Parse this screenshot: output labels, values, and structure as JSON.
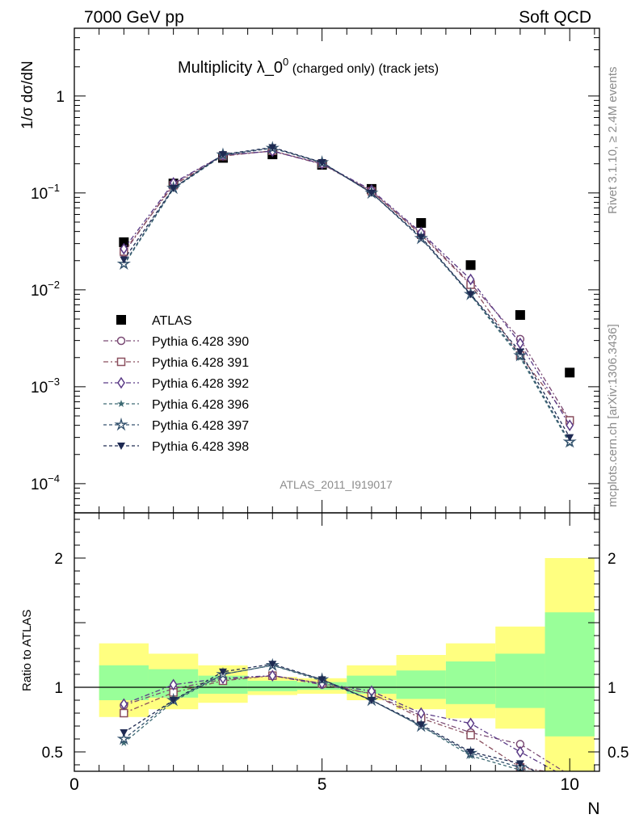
{
  "header": {
    "left": "7000 GeV pp",
    "right": "Soft QCD",
    "side_top": "Rivet 3.1.10, ≥ 2.4M events",
    "side_bottom": "mcplots.cern.ch [arXiv:1306.3436]"
  },
  "chart_data": {
    "type": "scatter",
    "title": "Multiplicity λ_0⁰ (charged only) (track jets)",
    "title_main": "Multiplicity λ_0",
    "title_sup": "0",
    "title_tail": " (charged only) (track jets)",
    "analysis_label": "ATLAS_2011_I919017",
    "xlabel": "N",
    "ylabel_main": "1/σ dσ/dN",
    "ylabel_ratio": "Ratio to ATLAS",
    "xlim": [
      0,
      10.6
    ],
    "main_ylim": [
      5e-05,
      5
    ],
    "main_yscale": "log",
    "main_yticks": [
      {
        "value": 1,
        "label": "1"
      },
      {
        "value": 0.1,
        "label": "10",
        "exp": "−1"
      },
      {
        "value": 0.01,
        "label": "10",
        "exp": "−2"
      },
      {
        "value": 0.001,
        "label": "10",
        "exp": "−3"
      },
      {
        "value": 0.0001,
        "label": "10",
        "exp": "−4"
      }
    ],
    "ratio_ylim": [
      0.35,
      2.35
    ],
    "ratio_yticks": [
      0.5,
      1,
      2
    ],
    "xticks": [
      0,
      5,
      10
    ],
    "legend_position": "middle-left",
    "x": [
      1,
      2,
      3,
      4,
      5,
      6,
      7,
      8,
      9,
      10
    ],
    "series": [
      {
        "name": "ATLAS",
        "marker": "square-filled",
        "color": "#000000",
        "dash": "",
        "values": [
          0.031,
          0.125,
          0.23,
          0.25,
          0.195,
          0.11,
          0.049,
          0.018,
          0.0055,
          0.0014
        ]
      },
      {
        "name": "Pythia 6.428 390",
        "marker": "circle",
        "color": "#7a4a74",
        "dash": "6,3,2,3",
        "values": [
          0.024,
          0.124,
          0.245,
          0.27,
          0.198,
          0.104,
          0.038,
          0.0116,
          0.0031,
          0.00045
        ],
        "ratio": [
          0.86,
          0.99,
          1.06,
          1.09,
          1.02,
          0.95,
          0.78,
          0.65,
          0.56,
          0.32
        ]
      },
      {
        "name": "Pythia 6.428 391",
        "marker": "square",
        "color": "#8a4f5e",
        "dash": "6,3,2,3",
        "values": [
          0.0248,
          0.12,
          0.24,
          0.272,
          0.2,
          0.104,
          0.037,
          0.0113,
          0.0021,
          0.00045
        ],
        "ratio": [
          0.8,
          0.96,
          1.05,
          1.09,
          1.03,
          0.95,
          0.76,
          0.63,
          0.38,
          0.32
        ]
      },
      {
        "name": "Pythia 6.428 392",
        "marker": "diamond",
        "color": "#5a3a86",
        "dash": "6,3,2,3",
        "values": [
          0.0265,
          0.127,
          0.245,
          0.27,
          0.2,
          0.107,
          0.039,
          0.0128,
          0.0028,
          0.0004
        ],
        "ratio": [
          0.87,
          1.02,
          1.07,
          1.09,
          1.03,
          0.97,
          0.8,
          0.72,
          0.5,
          0.29
        ]
      },
      {
        "name": "Pythia 6.428 396",
        "marker": "star-small",
        "color": "#3d6a73",
        "dash": "4,3",
        "values": [
          0.018,
          0.11,
          0.245,
          0.29,
          0.205,
          0.1,
          0.034,
          0.0088,
          0.002,
          0.00026
        ],
        "ratio": [
          0.57,
          0.89,
          1.1,
          1.17,
          1.05,
          0.9,
          0.7,
          0.47,
          0.36,
          0.19
        ]
      },
      {
        "name": "Pythia 6.428 397",
        "marker": "star",
        "color": "#34526e",
        "dash": "4,3",
        "values": [
          0.0185,
          0.112,
          0.248,
          0.29,
          0.206,
          0.1,
          0.034,
          0.009,
          0.0021,
          0.00027
        ],
        "ratio": [
          0.6,
          0.9,
          1.1,
          1.17,
          1.06,
          0.9,
          0.7,
          0.49,
          0.38,
          0.2
        ]
      },
      {
        "name": "Pythia 6.428 398",
        "marker": "triangle-down-filled",
        "color": "#1e2a52",
        "dash": "4,3",
        "values": [
          0.0205,
          0.112,
          0.25,
          0.295,
          0.207,
          0.1,
          0.035,
          0.009,
          0.0023,
          0.0003
        ],
        "ratio": [
          0.65,
          0.9,
          1.12,
          1.18,
          1.06,
          0.9,
          0.71,
          0.5,
          0.41,
          0.21
        ]
      }
    ],
    "error_bands": {
      "x_low": [
        0.5,
        1.5,
        2.5,
        3.5,
        4.5,
        5.5,
        6.5,
        7.5,
        8.5,
        9.5
      ],
      "x_high": [
        1.5,
        2.5,
        3.5,
        4.5,
        5.5,
        6.5,
        7.5,
        8.5,
        9.5,
        10.5
      ],
      "yellow_low": [
        0.77,
        0.83,
        0.88,
        0.94,
        0.95,
        0.9,
        0.83,
        0.76,
        0.68,
        0.35
      ],
      "yellow_high": [
        1.34,
        1.26,
        1.17,
        1.08,
        1.07,
        1.17,
        1.25,
        1.34,
        1.47,
        2.0
      ],
      "green_low": [
        0.9,
        0.92,
        0.95,
        0.97,
        0.98,
        0.95,
        0.91,
        0.87,
        0.84,
        0.62
      ],
      "green_high": [
        1.17,
        1.14,
        1.09,
        1.05,
        1.04,
        1.09,
        1.13,
        1.2,
        1.26,
        1.58
      ]
    },
    "colors": {
      "yellow": "#ffff80",
      "green": "#99ff99",
      "axis": "#000000",
      "label_grey": "#8c8c8c"
    }
  }
}
